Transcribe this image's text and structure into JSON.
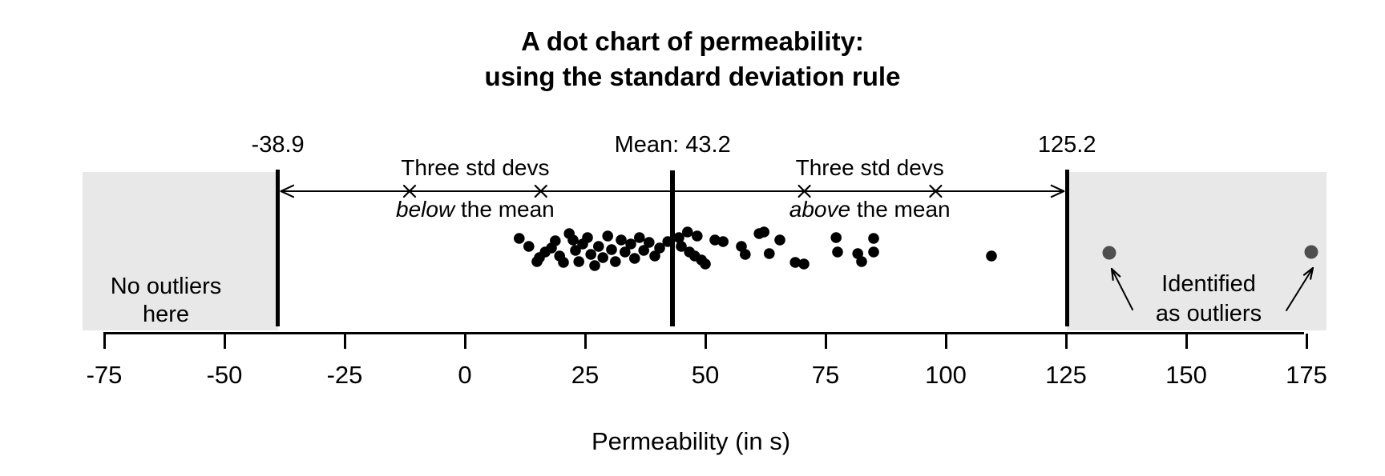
{
  "title": {
    "line1": "A dot chart of permeability:",
    "line2": "using the standard deviation rule"
  },
  "chart_data": {
    "type": "scatter",
    "xlabel": "Permeability (in s)",
    "x_ticks": [
      -75,
      -50,
      -25,
      0,
      25,
      50,
      75,
      100,
      125,
      150,
      175
    ],
    "xlim": [
      -87,
      179
    ],
    "grid": false,
    "mean": 43.2,
    "mean_label": "Mean: 43.2",
    "lower_bound": -38.9,
    "lower_label": "-38.9",
    "upper_bound": 125.2,
    "upper_label": "125.2",
    "std_dev_marks": [
      -11.5,
      15.8,
      70.6,
      97.9
    ],
    "band_left": {
      "line1": "Three std devs",
      "emph": "below",
      "rest": " the mean"
    },
    "band_right": {
      "line1": "Three std devs",
      "emph": "above",
      "rest": " the mean"
    },
    "no_outliers": {
      "line1": "No outliers",
      "line2": "here"
    },
    "identified": {
      "line1": "Identified",
      "line2": "as outliers"
    },
    "points": [
      [
        11.3,
        -13
      ],
      [
        13.3,
        -3
      ],
      [
        15.0,
        16
      ],
      [
        15.5,
        11
      ],
      [
        16.7,
        4
      ],
      [
        18.0,
        -1
      ],
      [
        18.8,
        -10
      ],
      [
        19.7,
        9
      ],
      [
        20.5,
        17
      ],
      [
        21.7,
        -19
      ],
      [
        22.5,
        -11
      ],
      [
        23.0,
        2
      ],
      [
        23.7,
        16
      ],
      [
        24.5,
        -6
      ],
      [
        25.5,
        -14
      ],
      [
        26.2,
        7
      ],
      [
        27.0,
        21
      ],
      [
        27.8,
        -3
      ],
      [
        28.7,
        11
      ],
      [
        29.7,
        -16
      ],
      [
        30.5,
        1
      ],
      [
        31.3,
        16
      ],
      [
        32.5,
        -11
      ],
      [
        33.3,
        4
      ],
      [
        34.5,
        -6
      ],
      [
        35.3,
        12
      ],
      [
        36.3,
        -14
      ],
      [
        37.2,
        2
      ],
      [
        38.3,
        -8
      ],
      [
        39.5,
        9
      ],
      [
        40.5,
        -1
      ],
      [
        42.2,
        -9
      ],
      [
        44.5,
        -14
      ],
      [
        45.0,
        -3
      ],
      [
        46.3,
        -21
      ],
      [
        46.7,
        4
      ],
      [
        47.8,
        9
      ],
      [
        48.3,
        -16
      ],
      [
        49.2,
        14
      ],
      [
        50.0,
        19
      ],
      [
        52.0,
        -11
      ],
      [
        53.7,
        -9
      ],
      [
        57.5,
        -3
      ],
      [
        58.3,
        7
      ],
      [
        61.2,
        -19
      ],
      [
        62.2,
        -21
      ],
      [
        63.3,
        6
      ],
      [
        65.5,
        -11
      ],
      [
        68.7,
        17
      ],
      [
        70.5,
        19
      ],
      [
        77.2,
        -14
      ],
      [
        77.5,
        4
      ],
      [
        81.7,
        6
      ],
      [
        82.5,
        16
      ],
      [
        85.0,
        -13
      ],
      [
        85.0,
        4
      ],
      [
        109.5,
        9
      ]
    ],
    "outlier_points": [
      [
        134,
        5
      ],
      [
        176,
        4
      ]
    ],
    "annotation_arrows": [
      {
        "from": [
          1413,
          387
        ],
        "to": [
          1387,
          336
        ]
      },
      {
        "from": [
          1605,
          388
        ],
        "to": [
          1638,
          335
        ]
      }
    ],
    "colors": {
      "dot": "#000000",
      "outlier_dot": "#4f4f4f",
      "shade": "#e8e8e8",
      "line": "#000000"
    }
  }
}
